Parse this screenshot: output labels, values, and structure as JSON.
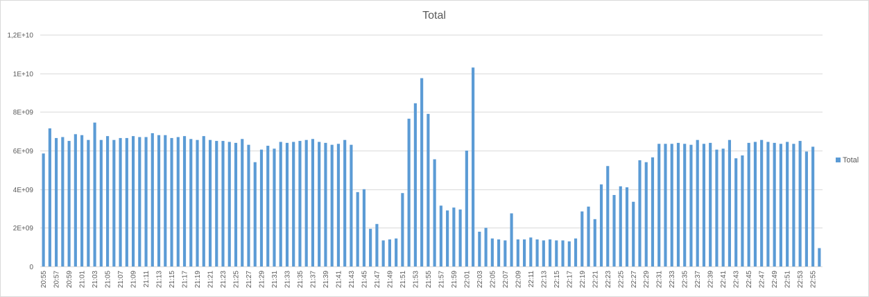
{
  "chart_data": {
    "type": "bar",
    "title": "Total",
    "xlabel": "",
    "ylabel": "",
    "ylim": [
      0,
      12000000000
    ],
    "y_ticks": [
      0,
      2000000000,
      4000000000,
      6000000000,
      8000000000,
      10000000000,
      12000000000
    ],
    "y_tick_labels": [
      "0",
      "2E+09",
      "4E+09",
      "6E+09",
      "8E+09",
      "1E+10",
      "1,2E+10"
    ],
    "grid": "horizontal",
    "legend_position": "right",
    "bar_color": "#5b9bd5",
    "series": [
      {
        "name": "Total",
        "values": [
          5850000000,
          7150000000,
          6650000000,
          6700000000,
          6500000000,
          6850000000,
          6800000000,
          6550000000,
          7450000000,
          6550000000,
          6750000000,
          6550000000,
          6650000000,
          6650000000,
          6750000000,
          6700000000,
          6700000000,
          6900000000,
          6800000000,
          6800000000,
          6650000000,
          6700000000,
          6750000000,
          6600000000,
          6550000000,
          6750000000,
          6550000000,
          6500000000,
          6500000000,
          6450000000,
          6400000000,
          6600000000,
          6300000000,
          5400000000,
          6050000000,
          6250000000,
          6100000000,
          6450000000,
          6400000000,
          6450000000,
          6500000000,
          6550000000,
          6600000000,
          6450000000,
          6400000000,
          6300000000,
          6350000000,
          6550000000,
          6300000000,
          3850000000,
          4000000000,
          1950000000,
          2200000000,
          1350000000,
          1400000000,
          1450000000,
          3800000000,
          7650000000,
          8450000000,
          9750000000,
          7900000000,
          5550000000,
          3150000000,
          2900000000,
          3050000000,
          2950000000,
          6000000000,
          10300000000,
          1800000000,
          2000000000,
          1450000000,
          1400000000,
          1350000000,
          2750000000,
          1400000000,
          1400000000,
          1500000000,
          1400000000,
          1350000000,
          1400000000,
          1350000000,
          1350000000,
          1300000000,
          1450000000,
          2850000000,
          3100000000,
          2450000000,
          4250000000,
          5200000000,
          3700000000,
          4150000000,
          4100000000,
          3350000000,
          5500000000,
          5400000000,
          5650000000,
          6350000000,
          6350000000,
          6350000000,
          6400000000,
          6350000000,
          6300000000,
          6550000000,
          6350000000,
          6400000000,
          6050000000,
          6100000000,
          6550000000,
          5600000000,
          5750000000,
          6400000000,
          6450000000,
          6550000000,
          6450000000,
          6400000000,
          6350000000,
          6450000000,
          6350000000,
          6500000000,
          5950000000,
          6200000000,
          950000000
        ]
      }
    ],
    "x_tick_labels": [
      "20:55",
      "20:57",
      "20:59",
      "21:01",
      "21:03",
      "21:05",
      "21:07",
      "21:09",
      "21:11",
      "21:13",
      "21:15",
      "21:17",
      "21:19",
      "21:21",
      "21:23",
      "21:25",
      "21:27",
      "21:29",
      "21:31",
      "21:33",
      "21:35",
      "21:37",
      "21:39",
      "21:41",
      "21:43",
      "21:45",
      "21:47",
      "21:49",
      "21:51",
      "21:53",
      "21:55",
      "21:57",
      "21:59",
      "22:01",
      "22:03",
      "22:05",
      "22:07",
      "22:09",
      "22:11",
      "22:13",
      "22:15",
      "22:17",
      "22:19",
      "22:21",
      "22:23",
      "22:25",
      "22:27",
      "22:29",
      "22:31",
      "22:33",
      "22:35",
      "22:37",
      "22:39",
      "22:41",
      "22:43",
      "22:45",
      "22:47",
      "22:49",
      "22:51",
      "22:53",
      "22:55"
    ],
    "legend": [
      {
        "label": "Total",
        "color": "#5b9bd5"
      }
    ]
  }
}
